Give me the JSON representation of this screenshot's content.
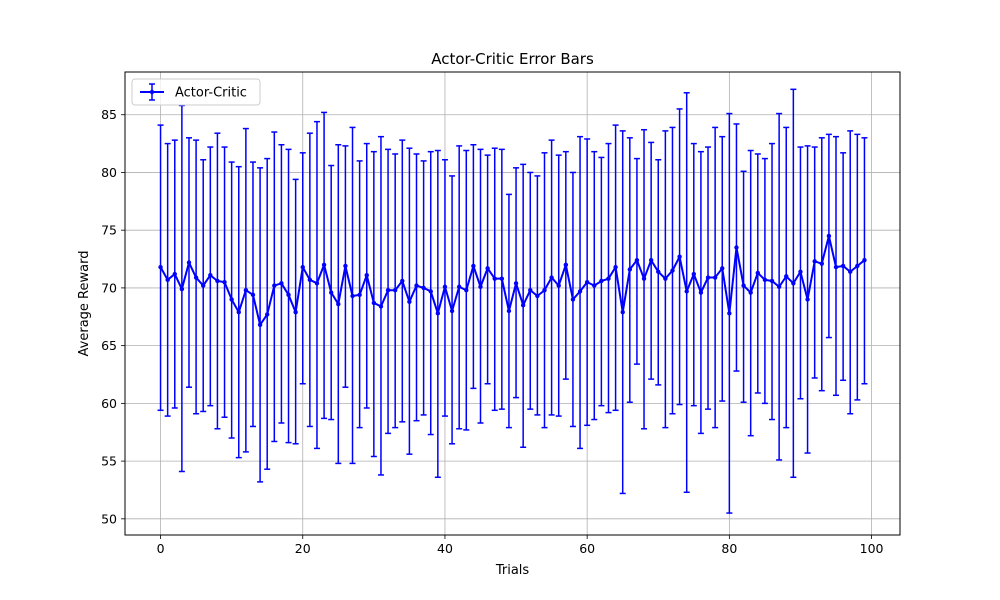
{
  "chart_data": {
    "type": "line",
    "title": "Actor-Critic Error Bars",
    "xlabel": "Trials",
    "ylabel": "Average Reward",
    "xlim": [
      -5,
      104
    ],
    "ylim": [
      48.6,
      88.7
    ],
    "xticks": [
      0,
      20,
      40,
      60,
      80,
      100
    ],
    "yticks": [
      50,
      55,
      60,
      65,
      70,
      75,
      80,
      85
    ],
    "grid": true,
    "legend_position": "top-left",
    "color": "#0000ff",
    "series": [
      {
        "name": "Actor-Critic",
        "x": [
          0,
          1,
          2,
          3,
          4,
          5,
          6,
          7,
          8,
          9,
          10,
          11,
          12,
          13,
          14,
          15,
          16,
          17,
          18,
          19,
          20,
          21,
          22,
          23,
          24,
          25,
          26,
          27,
          28,
          29,
          30,
          31,
          32,
          33,
          34,
          35,
          36,
          37,
          38,
          39,
          40,
          41,
          42,
          43,
          44,
          45,
          46,
          47,
          48,
          49,
          50,
          51,
          52,
          53,
          54,
          55,
          56,
          57,
          58,
          59,
          60,
          61,
          62,
          63,
          64,
          65,
          66,
          67,
          68,
          69,
          70,
          71,
          72,
          73,
          74,
          75,
          76,
          77,
          78,
          79,
          80,
          81,
          82,
          83,
          84,
          85,
          86,
          87,
          88,
          89,
          90,
          91,
          92,
          93,
          94,
          95,
          96,
          97,
          98,
          99
        ],
        "y": [
          71.8,
          70.7,
          71.2,
          69.9,
          72.2,
          70.9,
          70.2,
          71.1,
          70.6,
          70.5,
          69.0,
          67.9,
          69.8,
          69.4,
          66.8,
          67.7,
          70.2,
          70.4,
          69.4,
          67.9,
          71.8,
          70.7,
          70.4,
          72.0,
          69.6,
          68.6,
          71.9,
          69.3,
          69.4,
          71.1,
          68.7,
          68.4,
          69.8,
          69.8,
          70.6,
          68.8,
          70.2,
          70.0,
          69.7,
          67.8,
          70.1,
          68.0,
          70.1,
          69.8,
          71.9,
          70.1,
          71.7,
          70.8,
          70.8,
          68.0,
          70.4,
          68.5,
          69.8,
          69.3,
          69.8,
          70.9,
          70.2,
          72.0,
          69.0,
          69.7,
          70.5,
          70.2,
          70.6,
          70.8,
          71.8,
          67.9,
          71.6,
          72.4,
          70.8,
          72.4,
          71.4,
          70.8,
          71.5,
          72.7,
          69.7,
          71.2,
          69.6,
          70.9,
          70.9,
          71.7,
          67.8,
          73.5,
          70.2,
          69.6,
          71.3,
          70.7,
          70.6,
          70.1,
          71.0,
          70.4,
          71.4,
          69.0,
          72.3,
          72.1,
          74.5,
          71.8,
          71.9,
          71.4,
          71.9,
          72.4
        ],
        "y_upper": [
          84.1,
          82.5,
          82.8,
          85.8,
          83.0,
          82.8,
          81.1,
          82.2,
          83.4,
          82.2,
          80.9,
          80.5,
          83.8,
          80.9,
          80.4,
          81.2,
          83.5,
          82.4,
          82.0,
          79.4,
          81.7,
          83.4,
          84.4,
          85.2,
          80.6,
          82.4,
          82.3,
          83.9,
          81.0,
          82.5,
          81.8,
          83.1,
          82.0,
          81.6,
          82.8,
          82.1,
          81.6,
          81.0,
          81.8,
          81.9,
          81.1,
          79.7,
          82.3,
          81.9,
          82.4,
          82.0,
          81.5,
          82.1,
          82.0,
          78.1,
          80.4,
          80.7,
          80.0,
          79.7,
          81.7,
          82.8,
          81.5,
          81.8,
          80.0,
          83.1,
          82.9,
          81.8,
          81.3,
          82.5,
          84.1,
          83.6,
          83.0,
          81.2,
          83.7,
          82.6,
          81.1,
          83.6,
          83.9,
          85.5,
          86.9,
          82.5,
          81.8,
          82.2,
          83.9,
          83.1,
          85.1,
          84.2,
          80.1,
          81.9,
          81.6,
          81.2,
          82.5,
          85.1,
          83.9,
          87.2,
          82.2,
          82.3,
          82.2,
          83.0,
          83.3,
          83.1,
          81.7,
          83.6,
          83.3,
          83.0
        ],
        "y_lower": [
          59.4,
          58.9,
          59.6,
          54.1,
          61.4,
          59.1,
          59.3,
          59.8,
          57.8,
          58.8,
          57.0,
          55.3,
          55.8,
          58.0,
          53.2,
          54.3,
          56.7,
          58.3,
          56.6,
          56.5,
          61.7,
          58.0,
          56.1,
          58.7,
          58.6,
          54.8,
          61.4,
          54.8,
          57.9,
          59.6,
          55.4,
          53.8,
          57.4,
          57.9,
          58.4,
          55.6,
          58.5,
          59.0,
          57.3,
          53.6,
          58.9,
          56.5,
          57.8,
          57.7,
          61.3,
          58.3,
          61.7,
          59.4,
          59.5,
          57.9,
          60.5,
          56.2,
          59.5,
          59.0,
          57.9,
          59.0,
          58.9,
          62.1,
          58.0,
          56.1,
          58.1,
          58.6,
          59.8,
          59.2,
          59.4,
          52.2,
          60.1,
          63.4,
          57.8,
          62.1,
          61.6,
          57.9,
          59.1,
          59.9,
          52.3,
          59.8,
          57.4,
          59.5,
          57.9,
          60.2,
          50.5,
          62.8,
          60.1,
          57.2,
          60.9,
          60.0,
          58.6,
          55.1,
          57.9,
          53.6,
          60.4,
          55.7,
          62.2,
          61.1,
          65.7,
          60.7,
          62.0,
          59.1,
          60.3,
          61.7
        ]
      }
    ]
  }
}
